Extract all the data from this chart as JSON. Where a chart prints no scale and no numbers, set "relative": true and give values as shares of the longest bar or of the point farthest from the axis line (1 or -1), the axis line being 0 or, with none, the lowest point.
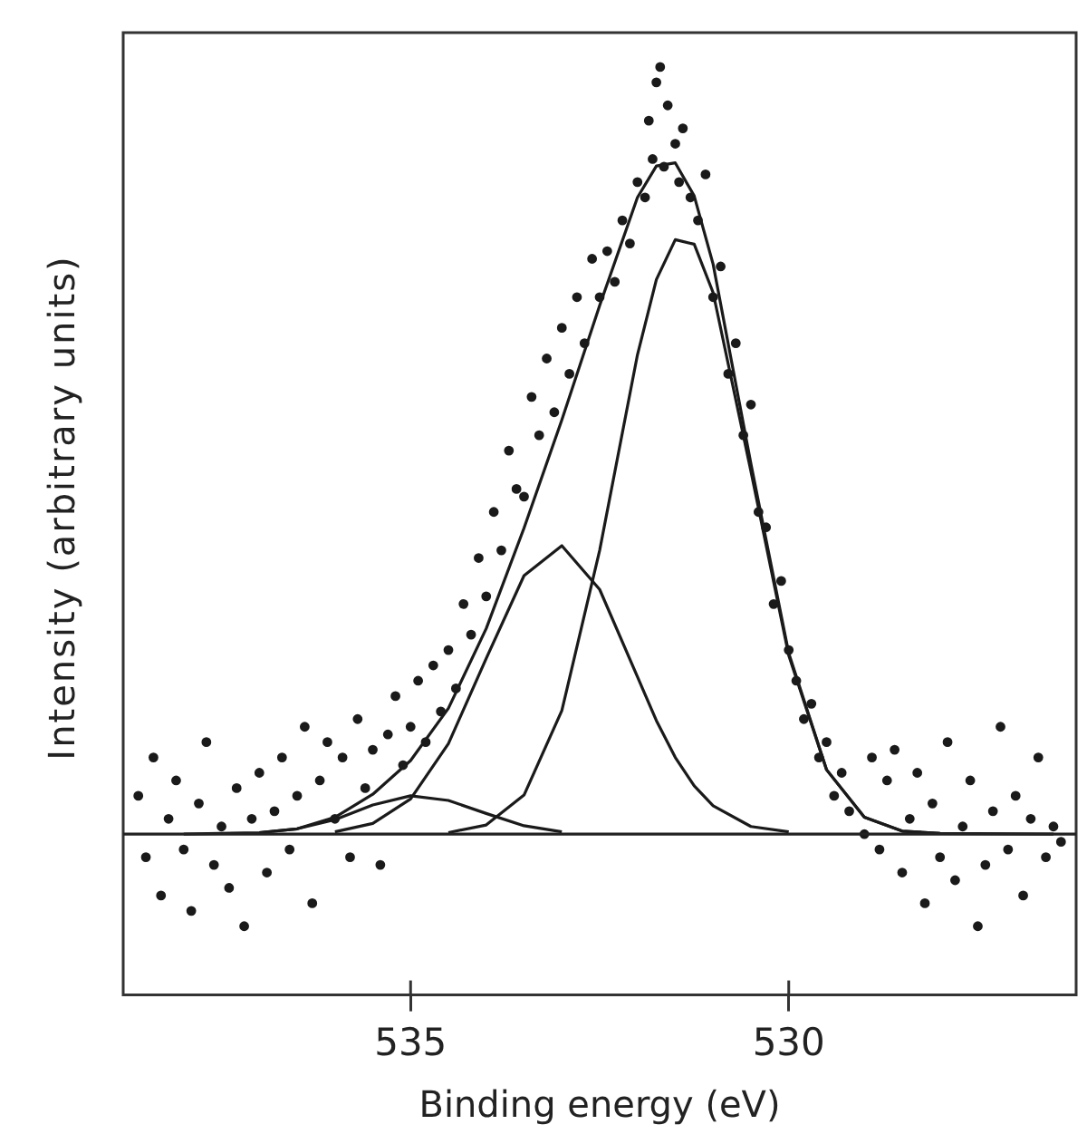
{
  "chart_data": {
    "type": "scatter",
    "xlabel": "Binding energy (eV)",
    "ylabel": "Intensity (arbitrary units)",
    "relative": true,
    "xlim": [
      538.8,
      526.2
    ],
    "xticks": [
      535,
      530
    ],
    "grid": false,
    "legend": false,
    "ref_lines": [
      {
        "axis": "y",
        "value": 0,
        "color": "#222222"
      }
    ],
    "series": [
      {
        "marker": "circle",
        "color": "#1a1a1a",
        "x": [
          538.6,
          538.5,
          538.4,
          538.3,
          538.2,
          538.1,
          538.0,
          537.9,
          537.8,
          537.7,
          537.6,
          537.5,
          537.4,
          537.3,
          537.2,
          537.1,
          537.0,
          536.9,
          536.8,
          536.7,
          536.6,
          536.5,
          536.4,
          536.3,
          536.2,
          536.1,
          536.0,
          535.9,
          535.8,
          535.7,
          535.6,
          535.5,
          535.4,
          535.3,
          535.2,
          535.1,
          535.0,
          534.9,
          534.8,
          534.7,
          534.6,
          534.5,
          534.4,
          534.3,
          534.2,
          534.1,
          534.0,
          533.9,
          533.8,
          533.7,
          533.6,
          533.5,
          533.4,
          533.3,
          533.2,
          533.1,
          533.0,
          532.9,
          532.8,
          532.7,
          532.6,
          532.5,
          532.4,
          532.3,
          532.2,
          532.1,
          532.0,
          531.9,
          531.85,
          531.8,
          531.75,
          531.7,
          531.65,
          531.6,
          531.5,
          531.45,
          531.4,
          531.3,
          531.2,
          531.1,
          531.0,
          530.9,
          530.8,
          530.7,
          530.6,
          530.5,
          530.4,
          530.3,
          530.2,
          530.1,
          530.0,
          529.9,
          529.8,
          529.7,
          529.6,
          529.5,
          529.4,
          529.3,
          529.2,
          529.0,
          528.9,
          528.8,
          528.7,
          528.6,
          528.5,
          528.4,
          528.3,
          528.2,
          528.1,
          528.0,
          527.9,
          527.8,
          527.7,
          527.6,
          527.5,
          527.4,
          527.3,
          527.2,
          527.1,
          527.0,
          526.9,
          526.8,
          526.7,
          526.6,
          526.5,
          526.4
        ],
        "values": [
          0.05,
          -0.03,
          0.1,
          -0.08,
          0.02,
          0.07,
          -0.02,
          -0.1,
          0.04,
          0.12,
          -0.04,
          0.01,
          -0.07,
          0.06,
          -0.12,
          0.02,
          0.08,
          -0.05,
          0.03,
          0.1,
          -0.02,
          0.05,
          0.14,
          -0.09,
          0.07,
          0.12,
          0.02,
          0.1,
          -0.03,
          0.15,
          0.06,
          0.11,
          -0.04,
          0.13,
          0.18,
          0.09,
          0.14,
          0.2,
          0.12,
          0.22,
          0.16,
          0.24,
          0.19,
          0.3,
          0.26,
          0.36,
          0.31,
          0.42,
          0.37,
          0.5,
          0.45,
          0.44,
          0.57,
          0.52,
          0.62,
          0.55,
          0.66,
          0.6,
          0.7,
          0.64,
          0.75,
          0.7,
          0.76,
          0.72,
          0.8,
          0.77,
          0.85,
          0.83,
          0.93,
          0.88,
          0.98,
          1.0,
          0.87,
          0.95,
          0.9,
          0.85,
          0.92,
          0.83,
          0.8,
          0.86,
          0.7,
          0.74,
          0.6,
          0.64,
          0.52,
          0.56,
          0.42,
          0.4,
          0.3,
          0.33,
          0.24,
          0.2,
          0.15,
          0.17,
          0.1,
          0.12,
          0.05,
          0.08,
          0.03,
          0.0,
          0.1,
          -0.02,
          0.07,
          0.11,
          -0.05,
          0.02,
          0.08,
          -0.09,
          0.04,
          -0.03,
          0.12,
          -0.06,
          0.01,
          0.07,
          -0.12,
          -0.04,
          0.03,
          0.14,
          -0.02,
          0.05,
          -0.08,
          0.02,
          0.1,
          -0.03,
          0.01,
          -0.01
        ]
      },
      {
        "type": "line",
        "color": "#1a1a1a",
        "x": [
          538,
          537,
          536.5,
          536,
          535.5,
          535,
          534.5,
          534,
          533.5,
          533,
          532.5,
          532,
          531.75,
          531.5,
          531.25,
          531,
          530.5,
          530,
          529.5,
          529,
          528.5,
          528,
          526.5
        ],
        "values": [
          0,
          0.002,
          0.007,
          0.022,
          0.052,
          0.096,
          0.164,
          0.268,
          0.399,
          0.54,
          0.689,
          0.83,
          0.871,
          0.875,
          0.832,
          0.743,
          0.483,
          0.236,
          0.084,
          0.022,
          0.004,
          0.001,
          0
        ]
      },
      {
        "type": "line",
        "color": "#1a1a1a",
        "x": [
          534.5,
          534,
          533.5,
          533,
          532.5,
          532,
          531.75,
          531.5,
          531.25,
          531,
          530.5,
          530,
          529.5,
          529,
          528.5,
          528
        ],
        "values": [
          0.002,
          0.012,
          0.051,
          0.161,
          0.37,
          0.625,
          0.723,
          0.775,
          0.769,
          0.706,
          0.473,
          0.233,
          0.084,
          0.022,
          0.004,
          0.001
        ]
      },
      {
        "type": "line",
        "color": "#1a1a1a",
        "x": [
          536,
          535.5,
          535,
          534.5,
          534,
          533.5,
          533,
          532.5,
          532,
          531.75,
          531.5,
          531.25,
          531,
          530.5,
          530
        ],
        "values": [
          0.003,
          0.014,
          0.046,
          0.118,
          0.229,
          0.337,
          0.376,
          0.319,
          0.205,
          0.148,
          0.1,
          0.063,
          0.037,
          0.01,
          0.003
        ]
      },
      {
        "type": "line",
        "color": "#1a1a1a",
        "x": [
          537,
          536.5,
          536,
          535.5,
          535,
          534.5,
          534,
          533.5,
          533
        ],
        "values": [
          0.002,
          0.007,
          0.019,
          0.038,
          0.05,
          0.044,
          0.027,
          0.011,
          0.003
        ]
      }
    ]
  }
}
